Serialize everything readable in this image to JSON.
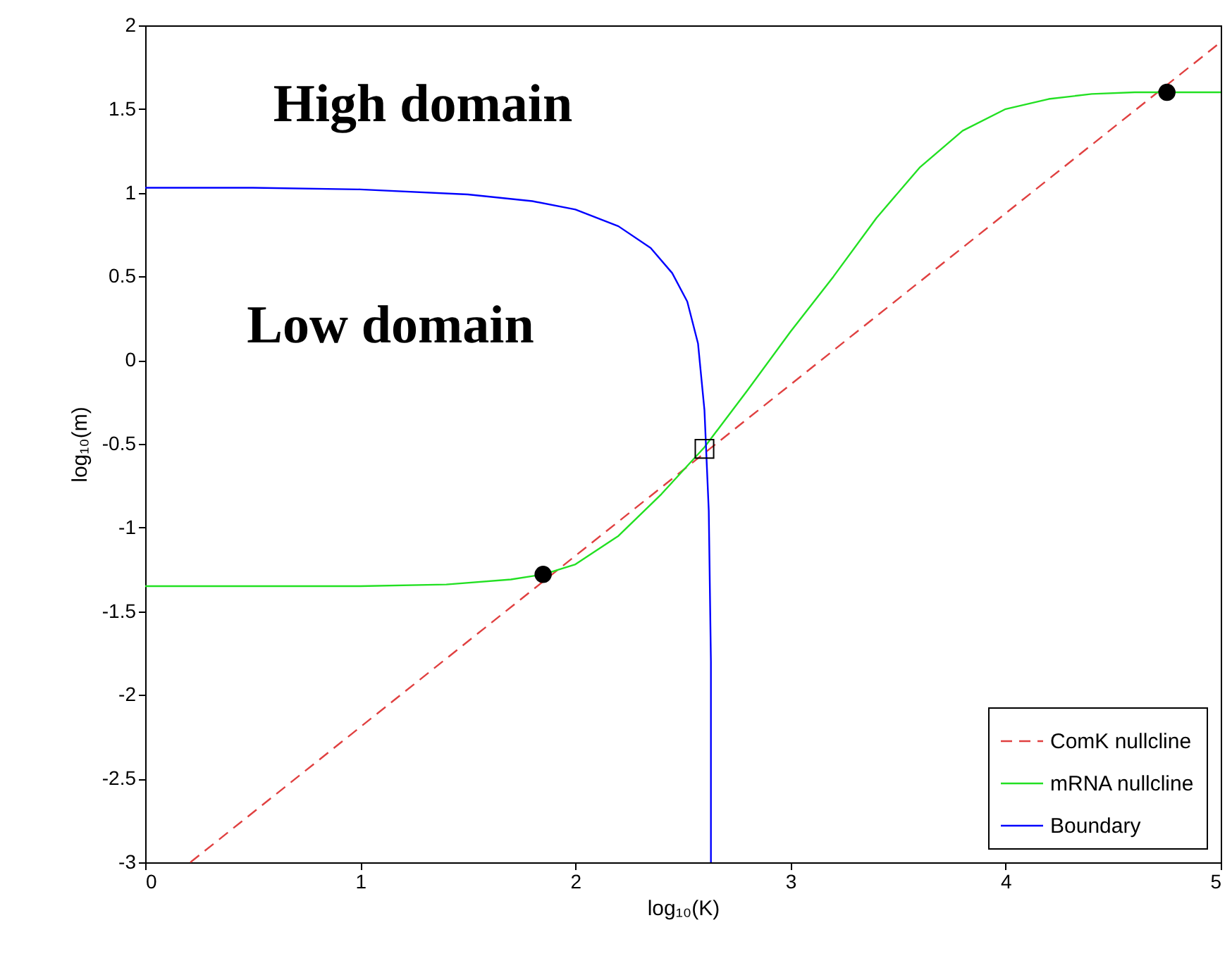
{
  "chart_data": {
    "type": "line",
    "xlabel": "log₁₀(K)",
    "ylabel": "log₁₀(m)",
    "xlim": [
      0,
      5
    ],
    "ylim": [
      -3,
      2
    ],
    "xticks": [
      0,
      1,
      2,
      3,
      4,
      5
    ],
    "yticks": [
      -3,
      -2.5,
      -2,
      -1.5,
      -1,
      -0.5,
      0,
      0.5,
      1,
      1.5,
      2
    ],
    "legend": "bottom right",
    "annotations": [
      "High domain",
      "Low domain"
    ],
    "series": [
      {
        "name": "ComK nullcline",
        "color": "#e04040",
        "line_style": "dashed",
        "marker": "none",
        "x": [
          0.21,
          5
        ],
        "values": [
          -3,
          1.9
        ]
      },
      {
        "name": "mRNA nullcline",
        "color": "#22e022",
        "line_style": "solid",
        "marker": "none",
        "x": [
          0,
          1,
          1.4,
          1.7,
          1.85,
          2.0,
          2.2,
          2.4,
          2.6,
          2.8,
          3.0,
          3.2,
          3.4,
          3.6,
          3.8,
          4.0,
          4.2,
          4.4,
          4.6,
          5
        ],
        "values": [
          -1.35,
          -1.35,
          -1.34,
          -1.31,
          -1.28,
          -1.22,
          -1.05,
          -0.8,
          -0.52,
          -0.18,
          0.17,
          0.5,
          0.85,
          1.15,
          1.37,
          1.5,
          1.56,
          1.59,
          1.6,
          1.6
        ]
      },
      {
        "name": "Boundary",
        "color": "#0000ff",
        "line_style": "solid",
        "marker": "none",
        "x": [
          0,
          0.5,
          1,
          1.5,
          1.8,
          2.0,
          2.2,
          2.35,
          2.45,
          2.52,
          2.57,
          2.6,
          2.62,
          2.63,
          2.63
        ],
        "values": [
          1.03,
          1.03,
          1.02,
          0.99,
          0.95,
          0.9,
          0.8,
          0.67,
          0.52,
          0.35,
          0.1,
          -0.3,
          -0.9,
          -1.8,
          -3
        ]
      },
      {
        "type": "scatter",
        "color": "#000000",
        "marker": "circle",
        "x": [
          1.85,
          4.75
        ],
        "values": [
          -1.28,
          1.6
        ]
      },
      {
        "type": "scatter",
        "color": "#000000",
        "marker": "square",
        "x": [
          2.6
        ],
        "values": [
          -0.53
        ]
      }
    ]
  }
}
